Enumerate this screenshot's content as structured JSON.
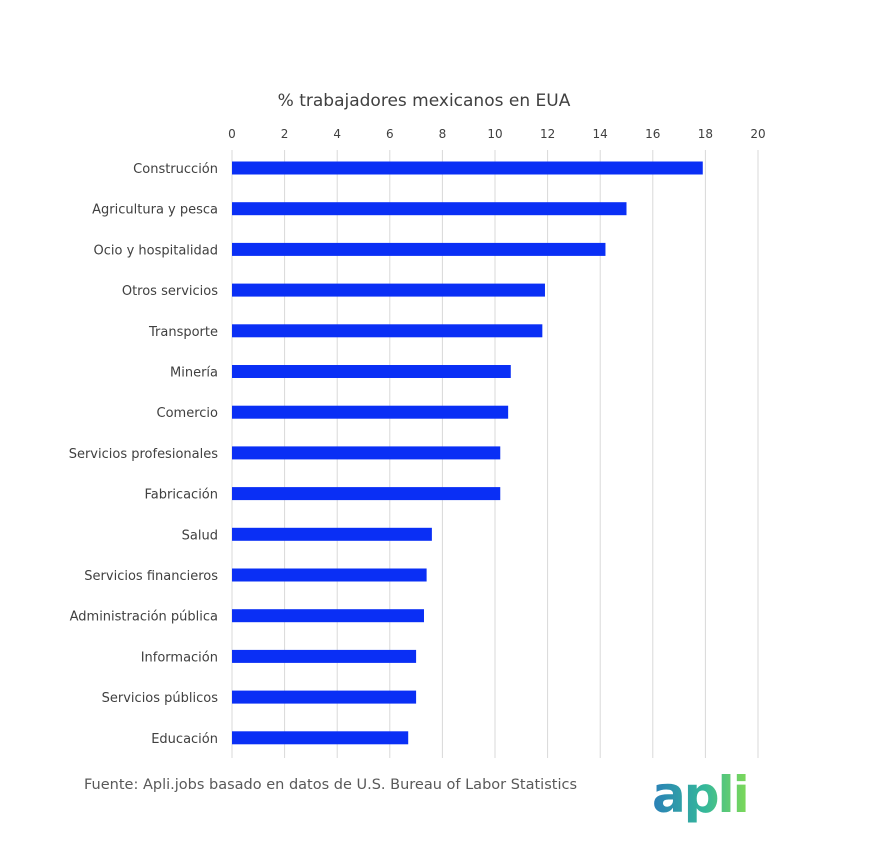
{
  "chart_data": {
    "type": "bar",
    "orientation": "horizontal",
    "title": "%  trabajadores mexicanos en EUA",
    "xaxis_position": "top",
    "xlim": [
      0,
      20
    ],
    "xticks": [
      "0",
      "2",
      "4",
      "6",
      "8",
      "10",
      "12",
      "14",
      "16",
      "18",
      "20"
    ],
    "grid": true,
    "categories": [
      "Construcción",
      "Agricultura y pesca",
      "Ocio y hospitalidad",
      "Otros servicios",
      "Transporte",
      "Minería",
      "Comercio",
      "Servicios profesionales",
      "Fabricación",
      "Salud",
      "Servicios financieros",
      "Administración pública",
      "Información",
      "Servicios públicos",
      "Educación"
    ],
    "values": [
      17.9,
      15.0,
      14.2,
      11.9,
      11.8,
      10.6,
      10.5,
      10.2,
      10.2,
      7.6,
      7.4,
      7.3,
      7.0,
      7.0,
      6.7
    ],
    "bar_color": "#0a2ff5"
  },
  "footer": {
    "source": "Fuente: Apli.jobs basado en datos de U.S. Bureau of Labor Statistics"
  },
  "logo": {
    "text": "apli",
    "colors": [
      "#2a7fb8",
      "#35b89a",
      "#7ed957"
    ]
  }
}
